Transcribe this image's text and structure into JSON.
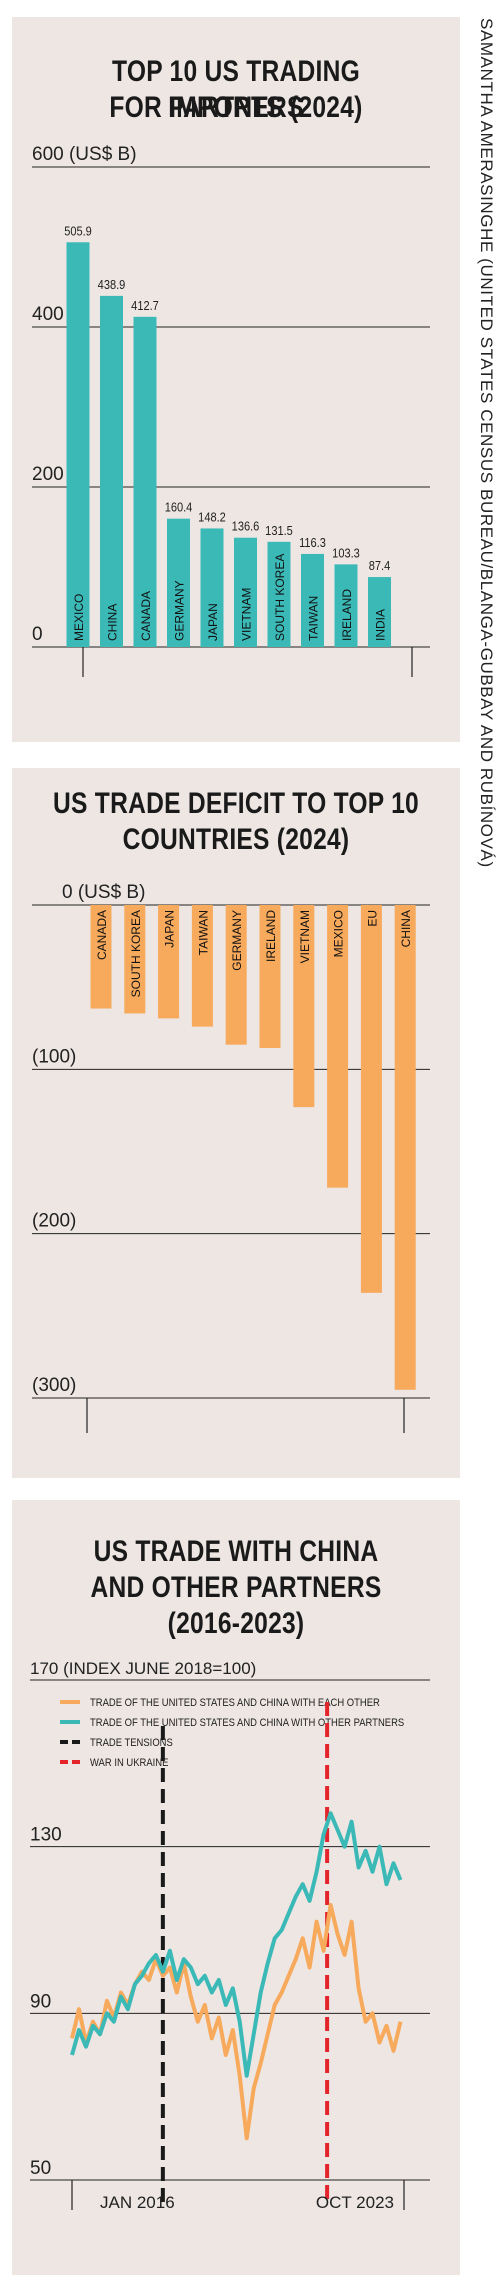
{
  "credit": "SAMANTHA AMERASINGHE (UNITED STATES CENSUS BUREAU/BLANGA-GUBBAY AND RUBÍNOVÁ)",
  "colors": {
    "teal": "#3ab9b7",
    "orange": "#f7a95c",
    "black": "#1a1a1a",
    "red": "#e3242b",
    "panel": "#ede6e3"
  },
  "chart_data": [
    {
      "type": "bar",
      "title_lines": [
        "TOP 10 US TRADING PARTNERS",
        "FOR IMPORTS (2024)"
      ],
      "unit_label": "600 (US$ B)",
      "yticks": [
        "400",
        "200",
        "0"
      ],
      "ylim": [
        0,
        600
      ],
      "grid": true,
      "categories": [
        "MEXICO",
        "CHINA",
        "CANADA",
        "GERMANY",
        "JAPAN",
        "VIETNAM",
        "SOUTH KOREA",
        "TAIWAN",
        "IRELAND",
        "INDIA"
      ],
      "values": [
        505.9,
        438.9,
        412.7,
        160.4,
        148.2,
        136.6,
        131.5,
        116.3,
        103.3,
        87.4
      ],
      "value_labels": [
        "505.9",
        "438.9",
        "412.7",
        "160.4",
        "148.2",
        "136.6",
        "131.5",
        "116.3",
        "103.3",
        "87.4"
      ]
    },
    {
      "type": "bar",
      "title_lines": [
        "US TRADE DEFICIT TO TOP 10",
        "COUNTRIES (2024)"
      ],
      "unit_label": "0 (US$ B)",
      "yticks": [
        "(100)",
        "(200)",
        "(300)"
      ],
      "ylim": [
        -300,
        0
      ],
      "grid": true,
      "categories": [
        "CANADA",
        "SOUTH KOREA",
        "JAPAN",
        "TAIWAN",
        "GERMANY",
        "IRELAND",
        "VIETNAM",
        "MEXICO",
        "EU",
        "CHINA"
      ],
      "values": [
        -63,
        -66,
        -69,
        -74,
        -85,
        -87,
        -123,
        -172,
        -236,
        -295
      ]
    },
    {
      "type": "line",
      "title_lines": [
        "US TRADE WITH CHINA",
        "AND OTHER PARTNERS",
        "(2016-2023)"
      ],
      "unit_label": "170 (INDEX JUNE 2018=100)",
      "yticks": [
        "130",
        "90",
        "50"
      ],
      "ylim": [
        50,
        170
      ],
      "grid": true,
      "x_range": [
        "2016-01",
        "2023-12"
      ],
      "xlabels": [
        "JAN 2016",
        "OCT 2023"
      ],
      "legend": [
        {
          "label": "TRADE OF THE UNITED STATES AND CHINA WITH EACH OTHER",
          "color": "#f7a95c",
          "kind": "line"
        },
        {
          "label": "TRADE OF THE UNITED STATES AND CHINA WITH OTHER PARTNERS",
          "color": "#3ab9b7",
          "kind": "line"
        },
        {
          "label": "TRADE TENSIONS",
          "color": "#1a1a1a",
          "kind": "dash"
        },
        {
          "label": "WAR IN UKRAINE",
          "color": "#e3242b",
          "kind": "dash"
        }
      ],
      "events": [
        {
          "date": "2018-03",
          "color": "#1a1a1a"
        },
        {
          "date": "2022-02",
          "color": "#e3242b"
        }
      ],
      "series": [
        {
          "name": "TRADE OF THE UNITED STATES AND CHINA WITH EACH OTHER",
          "color": "#f7a95c",
          "x": [
            "2016-01",
            "2016-03",
            "2016-05",
            "2016-07",
            "2016-09",
            "2016-11",
            "2017-01",
            "2017-03",
            "2017-05",
            "2017-07",
            "2017-09",
            "2017-11",
            "2018-01",
            "2018-03",
            "2018-05",
            "2018-07",
            "2018-09",
            "2018-11",
            "2019-01",
            "2019-03",
            "2019-05",
            "2019-07",
            "2019-09",
            "2019-11",
            "2020-01",
            "2020-03",
            "2020-05",
            "2020-07",
            "2020-09",
            "2020-11",
            "2021-01",
            "2021-03",
            "2021-05",
            "2021-07",
            "2021-09",
            "2021-11",
            "2022-01",
            "2022-03",
            "2022-05",
            "2022-07",
            "2022-09",
            "2022-11",
            "2023-01",
            "2023-03",
            "2023-05",
            "2023-07",
            "2023-09",
            "2023-11"
          ],
          "y": [
            84,
            91,
            83,
            88,
            85,
            93,
            89,
            95,
            92,
            97,
            100,
            98,
            103,
            99,
            101,
            95,
            102,
            94,
            88,
            92,
            84,
            89,
            80,
            86,
            75,
            60,
            72,
            78,
            85,
            92,
            95,
            99,
            103,
            108,
            101,
            112,
            105,
            116,
            109,
            104,
            112,
            96,
            88,
            90,
            83,
            87,
            81,
            88
          ]
        },
        {
          "name": "TRADE OF THE UNITED STATES AND CHINA WITH OTHER PARTNERS",
          "color": "#3ab9b7",
          "x": [
            "2016-01",
            "2016-03",
            "2016-05",
            "2016-07",
            "2016-09",
            "2016-11",
            "2017-01",
            "2017-03",
            "2017-05",
            "2017-07",
            "2017-09",
            "2017-11",
            "2018-01",
            "2018-03",
            "2018-05",
            "2018-07",
            "2018-09",
            "2018-11",
            "2019-01",
            "2019-03",
            "2019-05",
            "2019-07",
            "2019-09",
            "2019-11",
            "2020-01",
            "2020-03",
            "2020-05",
            "2020-07",
            "2020-09",
            "2020-11",
            "2021-01",
            "2021-03",
            "2021-05",
            "2021-07",
            "2021-09",
            "2021-11",
            "2022-01",
            "2022-03",
            "2022-05",
            "2022-07",
            "2022-09",
            "2022-11",
            "2023-01",
            "2023-03",
            "2023-05",
            "2023-07",
            "2023-09",
            "2023-11"
          ],
          "y": [
            80,
            86,
            82,
            87,
            85,
            90,
            88,
            94,
            91,
            97,
            99,
            102,
            104,
            100,
            105,
            98,
            103,
            101,
            97,
            99,
            95,
            98,
            92,
            96,
            88,
            75,
            85,
            95,
            102,
            108,
            110,
            114,
            118,
            121,
            117,
            124,
            133,
            138,
            134,
            130,
            136,
            125,
            129,
            124,
            130,
            121,
            126,
            122
          ]
        }
      ]
    }
  ]
}
